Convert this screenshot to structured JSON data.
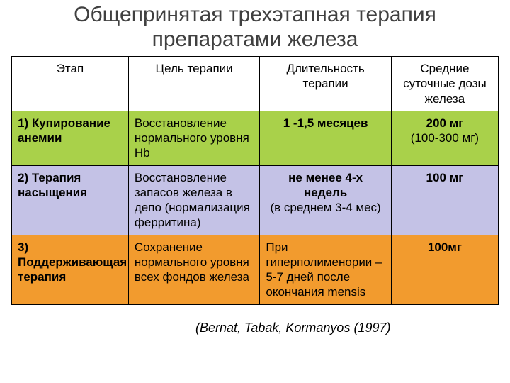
{
  "title": "Общепринятая трехэтапная терапия препаратами железа",
  "citation": "(Bernat, Tabak, Kormanyos (1997)",
  "colors": {
    "row1_bg": "#a9d14a",
    "row2_bg": "#c4c2e6",
    "row3_bg": "#f29b2e",
    "border": "#000000",
    "title_color": "#404040"
  },
  "table": {
    "columns": [
      "Этап",
      "Цель терапии",
      "Длительность терапии",
      "Средние суточные дозы железа"
    ],
    "rows": [
      {
        "stage": "1) Купирование анемии",
        "goal": "Восстановление нормального уровня Hb",
        "duration_strong": "1 -1,5 месяцев",
        "duration_note": "",
        "dose_strong": "200 мг",
        "dose_note": "(100-300 мг)"
      },
      {
        "stage": "2) Терапия насыщения",
        "goal": "Восстановление запасов железа в депо (нормализация ферритина)",
        "duration_strong": "не менее 4-х недель",
        "duration_note": "(в среднем 3-4 мес)",
        "dose_strong": "100 мг",
        "dose_note": ""
      },
      {
        "stage": "3) Поддерживающая терапия",
        "goal": "Сохранение нормального уровня всех фондов железа",
        "duration_strong": "",
        "duration_note": "При гиперполименории – 5-7 дней после окончания mensis",
        "dose_strong": "100мг",
        "dose_note": ""
      }
    ]
  }
}
